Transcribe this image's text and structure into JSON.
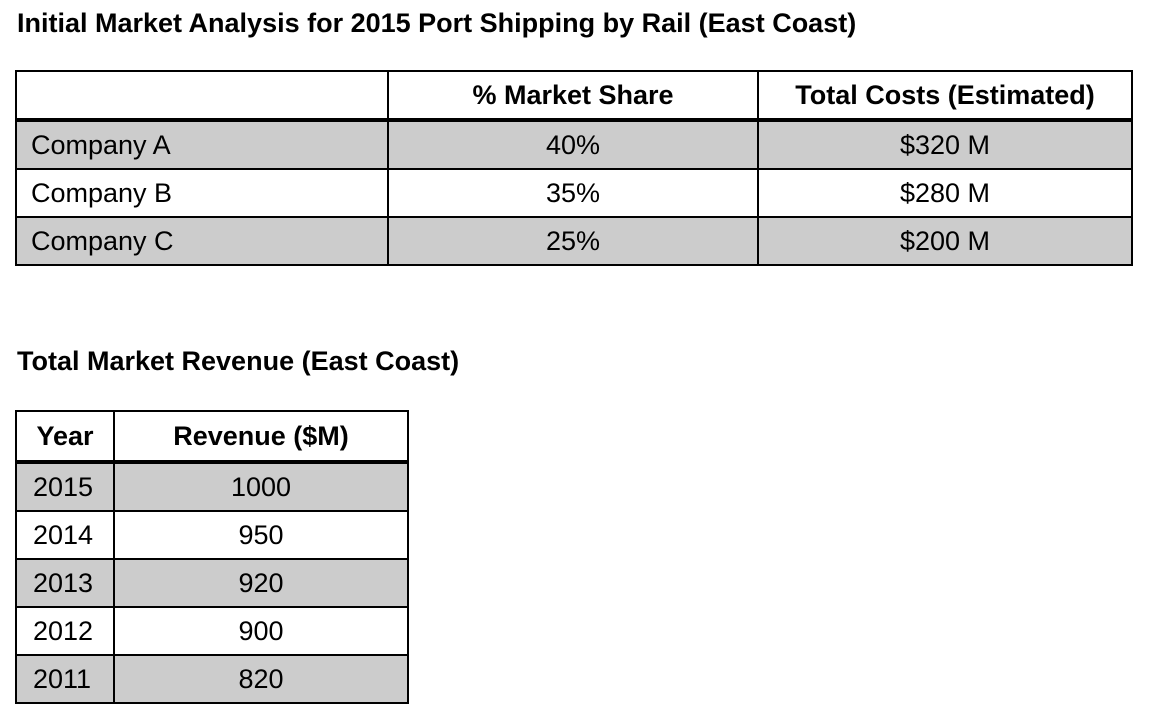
{
  "market_analysis": {
    "title": "Initial Market Analysis for 2015 Port Shipping by Rail (East Coast)",
    "headers": [
      "",
      "% Market Share",
      "Total Costs (Estimated)"
    ],
    "rows": [
      {
        "company": "Company A",
        "share": "40%",
        "costs": "$320 M"
      },
      {
        "company": "Company B",
        "share": "35%",
        "costs": "$280 M"
      },
      {
        "company": "Company C",
        "share": "25%",
        "costs": "$200 M"
      }
    ]
  },
  "revenue": {
    "title": "Total Market Revenue (East Coast)",
    "headers": [
      "Year",
      "Revenue ($M)"
    ],
    "rows": [
      {
        "year": "2015",
        "revenue": "1000"
      },
      {
        "year": "2014",
        "revenue": "950"
      },
      {
        "year": "2013",
        "revenue": "920"
      },
      {
        "year": "2012",
        "revenue": "900"
      },
      {
        "year": "2011",
        "revenue": "820"
      }
    ]
  },
  "colors": {
    "shaded_row": "#cccccc",
    "border": "#000000",
    "text": "#000000",
    "background": "#ffffff"
  }
}
